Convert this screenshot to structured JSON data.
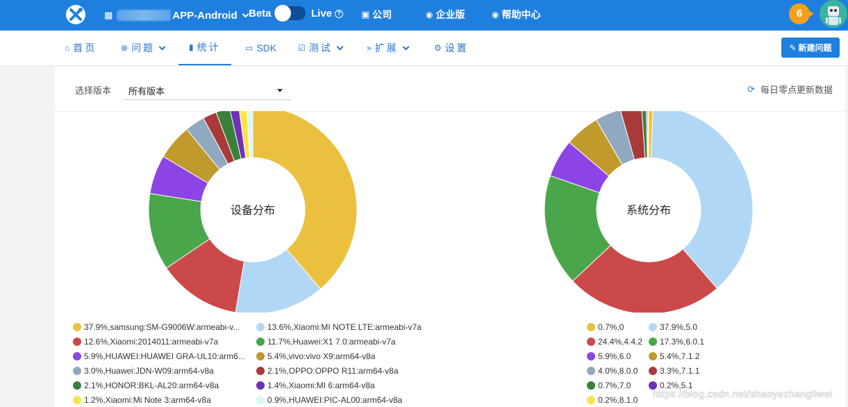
{
  "topbar": {
    "app_name": "APP-Android",
    "beta_label": "Beta",
    "live_label": "Live",
    "company_label": "公司",
    "enterprise_label": "企业版",
    "help_label": "帮助中心",
    "notification_count": "6"
  },
  "subnav": {
    "tabs": [
      {
        "label": "首页",
        "icon": "home-icon"
      },
      {
        "label": "问题",
        "icon": "bug-icon"
      },
      {
        "label": "统计",
        "icon": "bar-chart-icon"
      },
      {
        "label": "SDK",
        "icon": "sdk-icon"
      },
      {
        "label": "测试",
        "icon": "test-icon"
      },
      {
        "label": "扩展",
        "icon": "extend-icon"
      },
      {
        "label": "设置",
        "icon": "gear-icon"
      }
    ],
    "active_tab": "统计",
    "new_issue_label": "新建问题"
  },
  "filter": {
    "version_label": "选择版本",
    "version_value": "所有版本",
    "refresh_note": "每日零点更新数据"
  },
  "colors": {
    "primary": "#1f7fde",
    "badge": "#f5a01a"
  },
  "chart_data": [
    {
      "type": "pie",
      "title": "设备分布",
      "series": [
        {
          "label": "37.9%,samsung:SM-G9006W:armeabi-v...",
          "value": 37.9,
          "color": "#ecc03f"
        },
        {
          "label": "13.6%,Xiaomi:MI NOTE LTE:armeabi-v7a",
          "value": 13.6,
          "color": "#b0d7f6"
        },
        {
          "label": "12.6%,Xiaomi:2014011:armeabi-v7a",
          "value": 12.6,
          "color": "#cc4949"
        },
        {
          "label": "11.7%,Huawei:X1 7.0:armeabi-v7a",
          "value": 11.7,
          "color": "#4aa64a"
        },
        {
          "label": "5.9%,HUAWEI:HUAWEI GRA-UL10:arm6...",
          "value": 5.9,
          "color": "#8c44e4"
        },
        {
          "label": "5.4%,vivo:vivo X9:arm64-v8a",
          "value": 5.4,
          "color": "#c19a2e"
        },
        {
          "label": "3.0%,Huawei:JDN-W09:arm64-v8a",
          "value": 3.0,
          "color": "#90a8c0"
        },
        {
          "label": "2.1%,OPPO:OPPO R11:arm64-v8a",
          "value": 2.1,
          "color": "#a83a3a"
        },
        {
          "label": "2.1%,HONOR:BKL-AL20:arm64-v8a",
          "value": 2.1,
          "color": "#3a803a"
        },
        {
          "label": "1.4%,Xiaomi:MI 6:arm64-v8a",
          "value": 1.4,
          "color": "#7030b8"
        },
        {
          "label": "1.2%,Xiaomi:Mi Note 3:arm64-v8a",
          "value": 1.2,
          "color": "#f9e34c"
        },
        {
          "label": "0.9%,HUAWEI:PIC-AL00:arm64-v8a",
          "value": 0.9,
          "color": "#d8f8fa"
        }
      ]
    },
    {
      "type": "pie",
      "title": "系统分布",
      "series": [
        {
          "label": "0.7%,0",
          "value": 0.7,
          "color": "#ecc03f"
        },
        {
          "label": "37.9%,5.0",
          "value": 37.9,
          "color": "#b0d7f6"
        },
        {
          "label": "24.4%,4.4.2",
          "value": 24.4,
          "color": "#cc4949"
        },
        {
          "label": "17.3%,6.0.1",
          "value": 17.3,
          "color": "#4aa64a"
        },
        {
          "label": "5.9%,6.0",
          "value": 5.9,
          "color": "#8c44e4"
        },
        {
          "label": "5.4%,7.1.2",
          "value": 5.4,
          "color": "#c19a2e"
        },
        {
          "label": "4.0%,8.0.0",
          "value": 4.0,
          "color": "#90a8c0"
        },
        {
          "label": "3.3%,7.1.1",
          "value": 3.3,
          "color": "#a83a3a"
        },
        {
          "label": "0.7%,7.0",
          "value": 0.7,
          "color": "#3a803a"
        },
        {
          "label": "0.2%,5.1",
          "value": 0.2,
          "color": "#7030b8"
        },
        {
          "label": "0.2%,8.1.0",
          "value": 0.2,
          "color": "#f9e34c"
        }
      ]
    }
  ],
  "watermark": "https://blog.csdn.net/shaoyezhangliwei"
}
